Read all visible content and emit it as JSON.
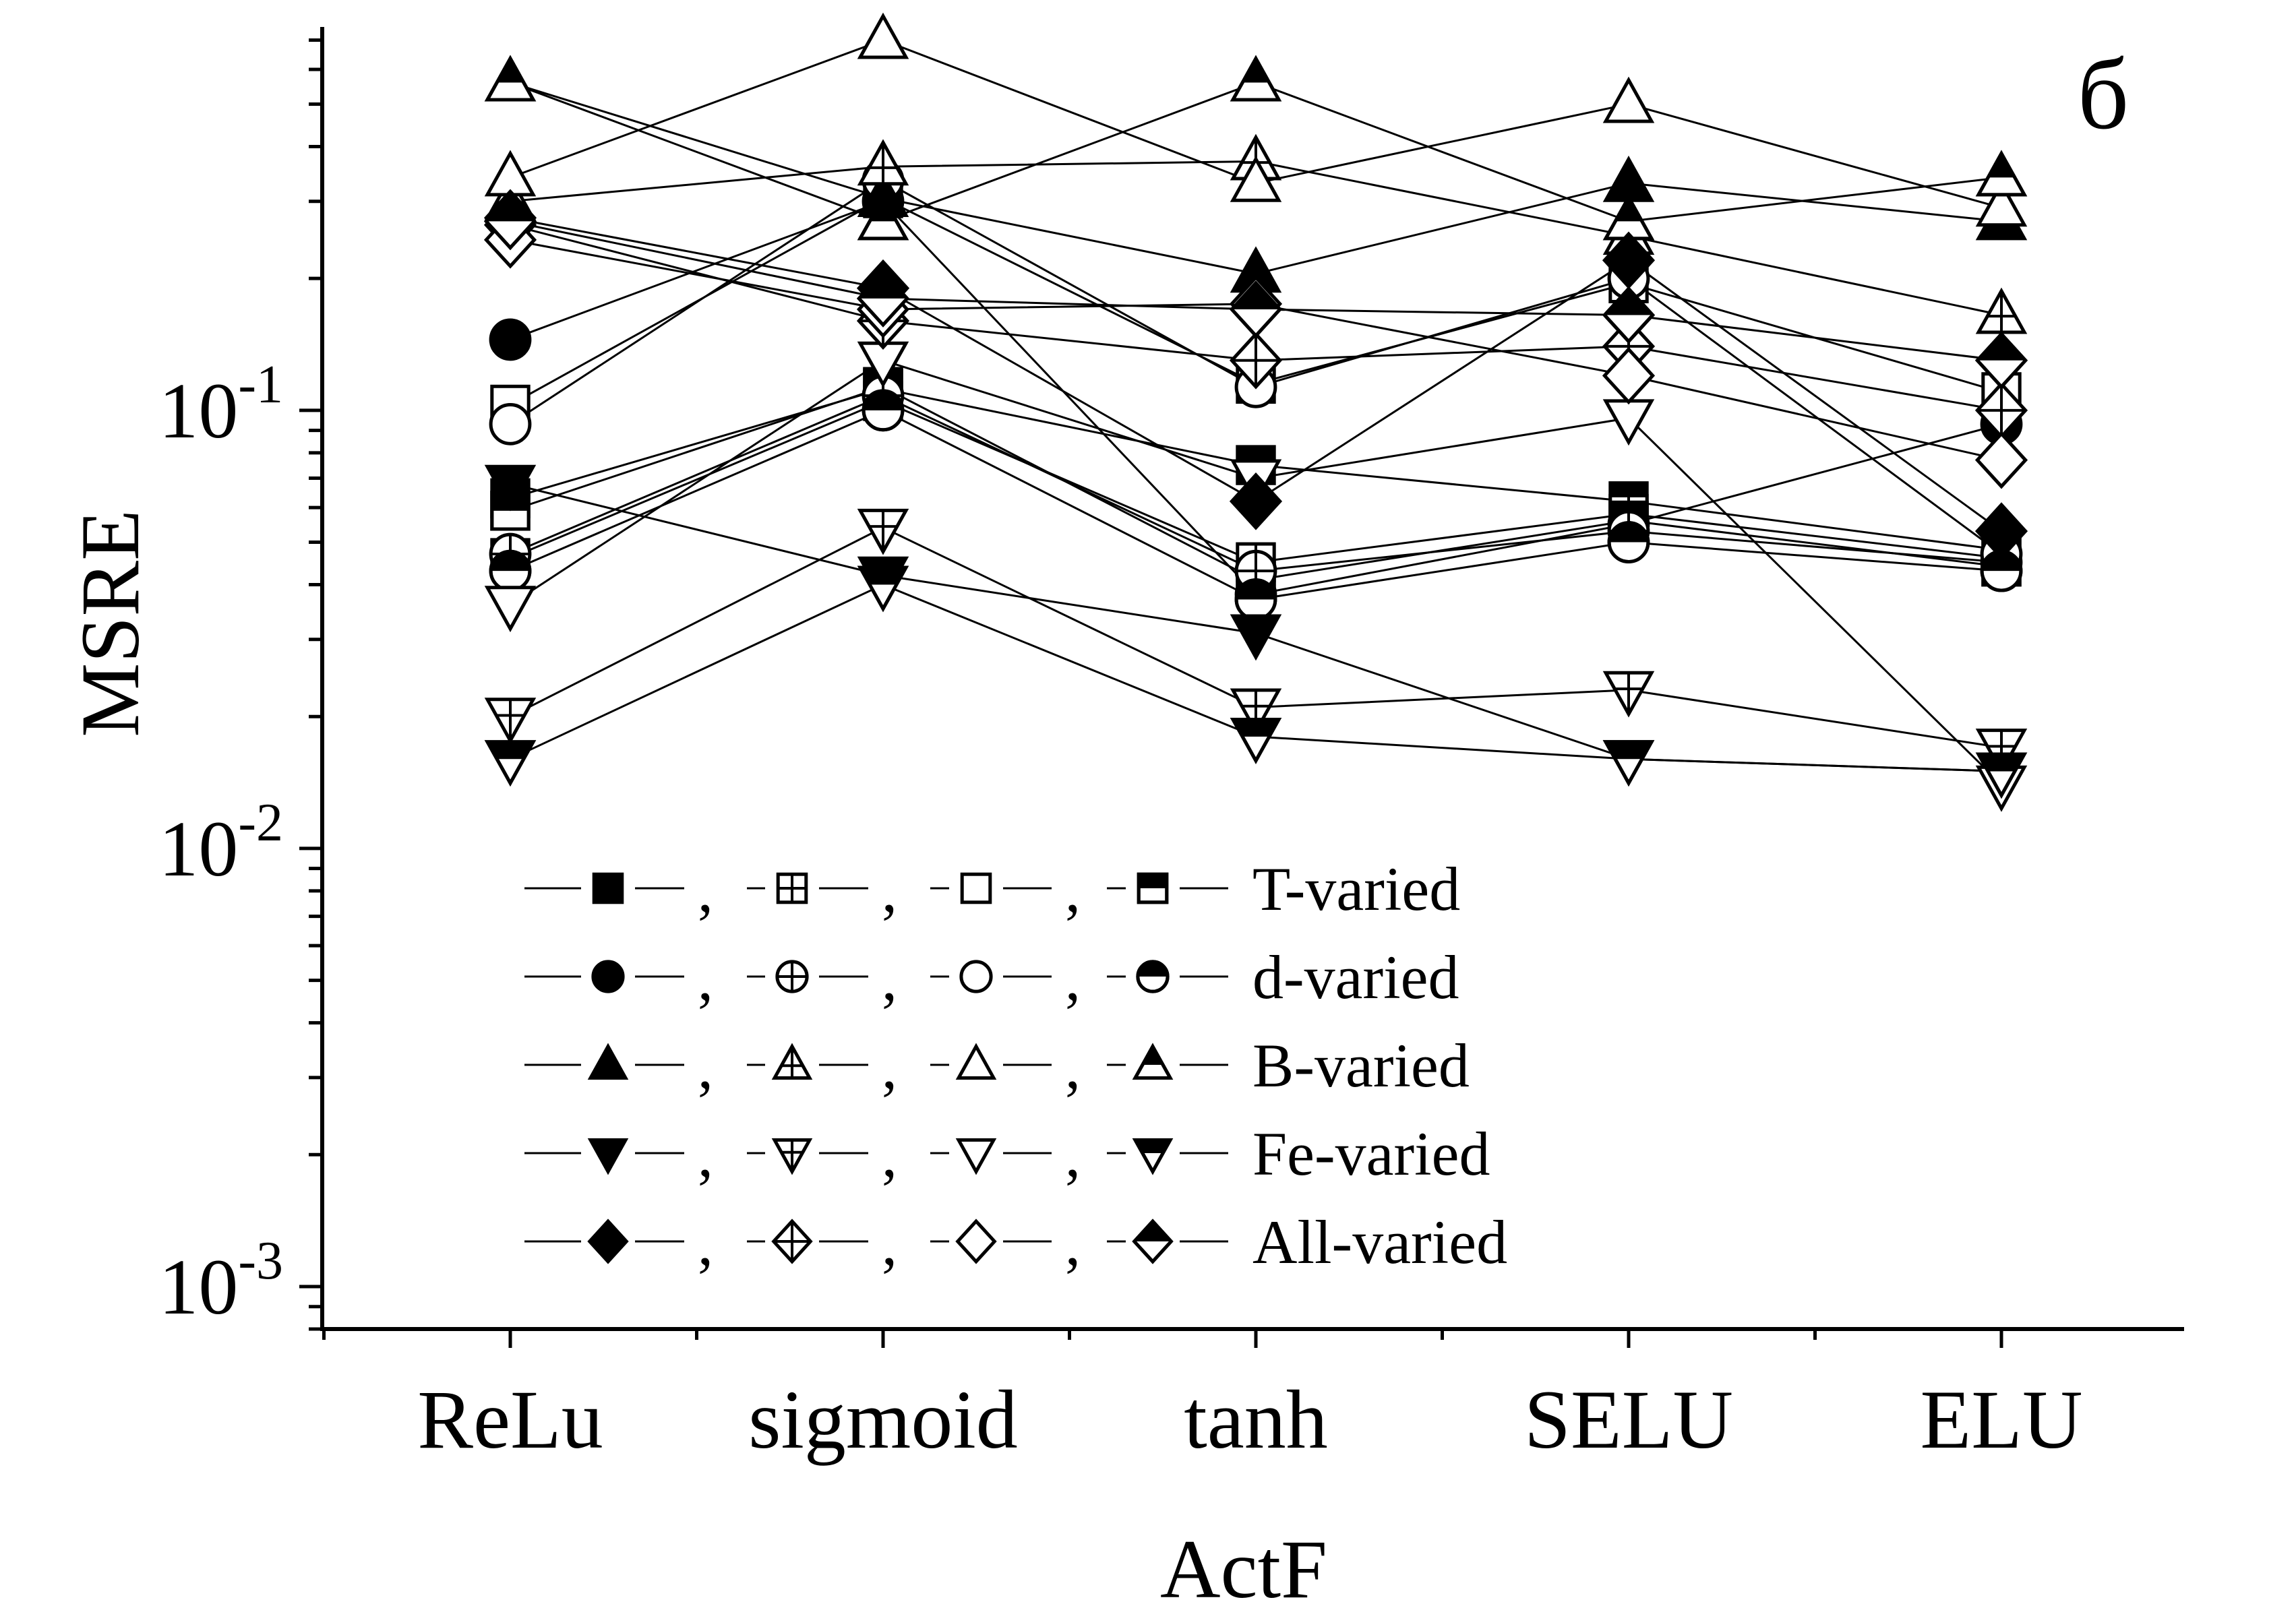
{
  "chart_data": {
    "type": "line",
    "panel_label": "б",
    "xlabel": "ActF",
    "ylabel": "MSRE",
    "yscale": "log",
    "ylim": [
      0.0008,
      0.75
    ],
    "yticks": [
      {
        "value": 0.001,
        "base": "10",
        "exp": "-3"
      },
      {
        "value": 0.01,
        "base": "10",
        "exp": "-2"
      },
      {
        "value": 0.1,
        "base": "10",
        "exp": "-1"
      }
    ],
    "categories": [
      "ReLu",
      "sigmoid",
      "tanh",
      "SELU",
      "ELU"
    ],
    "grid": false,
    "legend_position": "lower-left",
    "legend": [
      {
        "label": "T-varied",
        "shape": "square"
      },
      {
        "label": "d-varied",
        "shape": "circle"
      },
      {
        "label": "B-varied",
        "shape": "triangle-up"
      },
      {
        "label": "Fe-varied",
        "shape": "triangle-down"
      },
      {
        "label": "All-varied",
        "shape": "diamond"
      }
    ],
    "legend_separator": ",",
    "fills": [
      "filled",
      "crossed",
      "open",
      "half"
    ],
    "series": [
      {
        "group": "T-varied",
        "shape": "square",
        "fill": "filled",
        "values": [
          0.063,
          0.112,
          0.075,
          0.062,
          0.048
        ]
      },
      {
        "group": "T-varied",
        "shape": "square",
        "fill": "crossed",
        "values": [
          0.046,
          0.105,
          0.045,
          0.058,
          0.046
        ]
      },
      {
        "group": "T-varied",
        "shape": "square",
        "fill": "open",
        "values": [
          0.103,
          0.305,
          0.115,
          0.195,
          0.11
        ]
      },
      {
        "group": "T-varied",
        "shape": "square",
        "fill": "half",
        "values": [
          0.059,
          0.113,
          0.041,
          0.056,
          0.044
        ]
      },
      {
        "group": "d-varied",
        "shape": "circle",
        "fill": "filled",
        "values": [
          0.145,
          0.3,
          0.038,
          0.055,
          0.093
        ]
      },
      {
        "group": "d-varied",
        "shape": "circle",
        "fill": "crossed",
        "values": [
          0.047,
          0.108,
          0.043,
          0.053,
          0.045
        ]
      },
      {
        "group": "d-varied",
        "shape": "circle",
        "fill": "open",
        "values": [
          0.093,
          0.335,
          0.113,
          0.2,
          0.047
        ]
      },
      {
        "group": "d-varied",
        "shape": "circle",
        "fill": "half",
        "values": [
          0.043,
          0.1,
          0.037,
          0.05,
          0.043
        ]
      },
      {
        "group": "B-varied",
        "shape": "triangle-up",
        "fill": "filled",
        "values": [
          0.56,
          0.305,
          0.205,
          0.33,
          0.27
        ]
      },
      {
        "group": "B-varied",
        "shape": "triangle-up",
        "fill": "crossed",
        "values": [
          0.3,
          0.36,
          0.37,
          0.25,
          0.165
        ]
      },
      {
        "group": "B-varied",
        "shape": "triangle-up",
        "fill": "open",
        "values": [
          0.34,
          0.7,
          0.33,
          0.5,
          0.29
        ]
      },
      {
        "group": "B-varied",
        "shape": "triangle-up",
        "fill": "half",
        "values": [
          0.56,
          0.27,
          0.56,
          0.27,
          0.34
        ]
      },
      {
        "group": "Fe-varied",
        "shape": "triangle-down",
        "fill": "filled",
        "values": [
          0.068,
          0.042,
          0.031,
          0.016,
          0.015
        ]
      },
      {
        "group": "Fe-varied",
        "shape": "triangle-down",
        "fill": "crossed",
        "values": [
          0.02,
          0.054,
          0.021,
          0.023,
          0.017
        ]
      },
      {
        "group": "Fe-varied",
        "shape": "triangle-down",
        "fill": "open",
        "values": [
          0.036,
          0.13,
          0.07,
          0.096,
          0.014
        ]
      },
      {
        "group": "Fe-varied",
        "shape": "triangle-down",
        "fill": "half",
        "values": [
          0.016,
          0.04,
          0.018,
          0.016,
          0.015
        ]
      },
      {
        "group": "All-varied",
        "shape": "diamond",
        "fill": "filled",
        "values": [
          0.275,
          0.19,
          0.062,
          0.22,
          0.053
        ]
      },
      {
        "group": "All-varied",
        "shape": "diamond",
        "fill": "crossed",
        "values": [
          0.265,
          0.16,
          0.13,
          0.14,
          0.1
        ]
      },
      {
        "group": "All-varied",
        "shape": "diamond",
        "fill": "open",
        "values": [
          0.245,
          0.17,
          0.175,
          0.12,
          0.077
        ]
      },
      {
        "group": "All-varied",
        "shape": "diamond",
        "fill": "half",
        "values": [
          0.27,
          0.18,
          0.17,
          0.165,
          0.13
        ]
      }
    ]
  }
}
